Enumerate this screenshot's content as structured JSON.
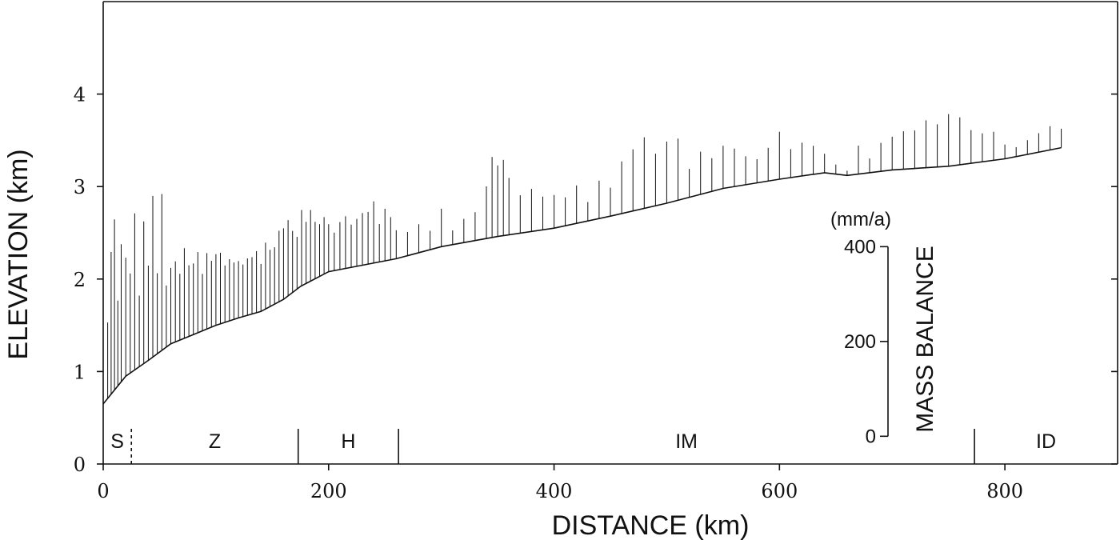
{
  "chart_data": {
    "type": "bar",
    "xlabel": "DISTANCE (km)",
    "ylabel": "ELEVATION (km)",
    "xlim": [
      0,
      900
    ],
    "ylim": [
      0,
      5
    ],
    "x_ticks": [
      0,
      200,
      400,
      600,
      800
    ],
    "x_tick_labels": [
      "0",
      "200",
      "400",
      "600",
      "800"
    ],
    "y_ticks": [
      0,
      1,
      2,
      3,
      4
    ],
    "y_tick_labels": [
      "0",
      "1",
      "2",
      "3",
      "4"
    ],
    "surface_profile": {
      "x": [
        0,
        20,
        40,
        60,
        80,
        100,
        120,
        140,
        160,
        175,
        200,
        230,
        260,
        300,
        350,
        400,
        450,
        500,
        550,
        600,
        640,
        660,
        700,
        750,
        800,
        850
      ],
      "y": [
        0.65,
        0.95,
        1.12,
        1.3,
        1.4,
        1.5,
        1.58,
        1.65,
        1.78,
        1.92,
        2.08,
        2.15,
        2.22,
        2.35,
        2.46,
        2.55,
        2.68,
        2.82,
        2.98,
        3.08,
        3.15,
        3.12,
        3.18,
        3.22,
        3.3,
        3.42
      ]
    },
    "zones": [
      {
        "label": "S",
        "from": 0,
        "to": 25
      },
      {
        "label": "Z",
        "from": 25,
        "to": 173
      },
      {
        "label": "H",
        "from": 173,
        "to": 262
      },
      {
        "label": "IM",
        "from": 262,
        "to": 773
      },
      {
        "label": "ID",
        "from": 773,
        "to": 900
      }
    ],
    "mass_balance_axis": {
      "title": "MASS BALANCE",
      "unit": "(mm/a)",
      "ticks": [
        0,
        200,
        400
      ],
      "tick_labels": [
        "0",
        "200",
        "400"
      ],
      "range": [
        0,
        400
      ],
      "elevation_span_km": [
        0.3,
        2.35
      ]
    },
    "mass_balance": {
      "x": [
        4,
        7,
        10,
        13,
        16,
        20,
        24,
        28,
        32,
        36,
        40,
        44,
        48,
        52,
        56,
        60,
        64,
        68,
        72,
        76,
        80,
        84,
        88,
        92,
        96,
        100,
        104,
        108,
        112,
        116,
        120,
        124,
        128,
        132,
        136,
        140,
        144,
        148,
        152,
        156,
        160,
        164,
        168,
        172,
        176,
        180,
        184,
        188,
        192,
        196,
        200,
        205,
        210,
        215,
        220,
        225,
        230,
        235,
        240,
        245,
        250,
        255,
        260,
        270,
        280,
        290,
        300,
        310,
        320,
        330,
        340,
        345,
        350,
        355,
        360,
        370,
        380,
        390,
        400,
        410,
        420,
        430,
        440,
        450,
        460,
        470,
        480,
        490,
        500,
        510,
        520,
        530,
        540,
        550,
        560,
        570,
        580,
        590,
        600,
        610,
        620,
        630,
        640,
        650,
        660,
        670,
        680,
        690,
        700,
        710,
        720,
        730,
        740,
        750,
        760,
        770,
        780,
        790,
        800,
        810,
        820,
        830,
        840,
        850
      ],
      "y": [
        160,
        300,
        360,
        180,
        290,
        250,
        210,
        330,
        150,
        300,
        200,
        340,
        170,
        330,
        130,
        160,
        170,
        140,
        190,
        150,
        150,
        170,
        120,
        160,
        140,
        150,
        150,
        120,
        130,
        120,
        120,
        110,
        120,
        120,
        130,
        100,
        140,
        120,
        120,
        150,
        150,
        160,
        130,
        110,
        160,
        130,
        150,
        120,
        110,
        120,
        100,
        80,
        100,
        110,
        90,
        100,
        110,
        110,
        130,
        80,
        110,
        90,
        60,
        50,
        60,
        40,
        80,
        30,
        50,
        60,
        110,
        170,
        150,
        160,
        120,
        80,
        90,
        70,
        70,
        60,
        80,
        40,
        80,
        60,
        110,
        130,
        150,
        110,
        130,
        130,
        60,
        90,
        70,
        90,
        80,
        60,
        50,
        70,
        100,
        60,
        70,
        60,
        40,
        20,
        10,
        60,
        30,
        60,
        70,
        80,
        80,
        100,
        90,
        110,
        100,
        70,
        60,
        60,
        30,
        20,
        30,
        40,
        50,
        40
      ]
    }
  }
}
